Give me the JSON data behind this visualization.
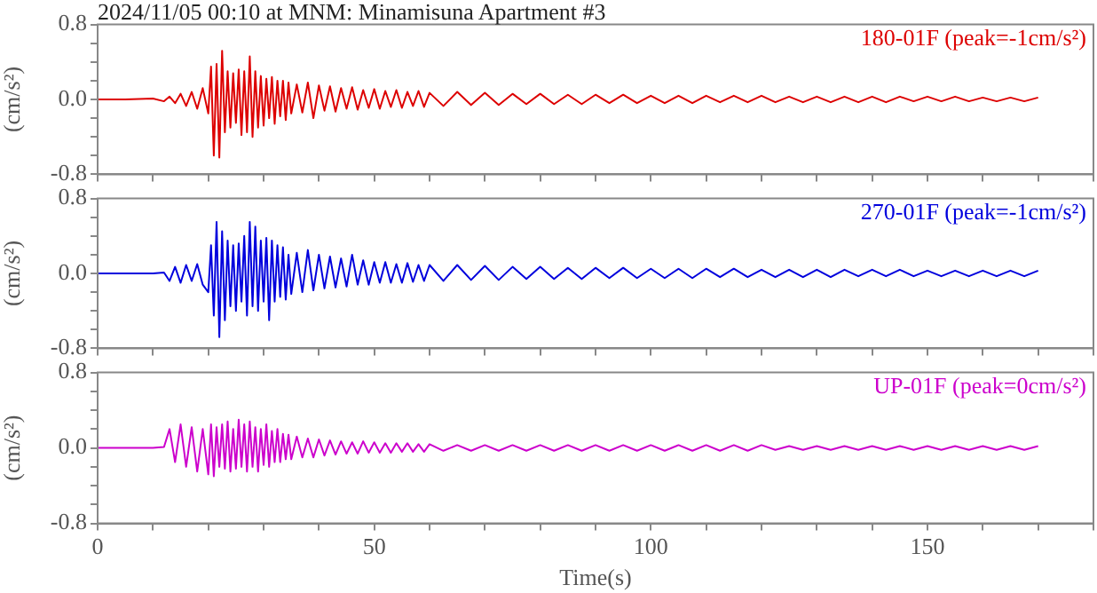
{
  "chart_data": [
    {
      "type": "line",
      "title": "2024/11/05 00:10 at MNM: Minamisuna Apartment #3",
      "ylabel": "(cm/s²)",
      "annotations": [
        "180-01F (peak=-1cm/s²)"
      ],
      "tick_labels": "y",
      "x": [
        0,
        5,
        10,
        12,
        13,
        14,
        15,
        16,
        17,
        18,
        19,
        20,
        20.5,
        21,
        21.5,
        22,
        22.5,
        23,
        23.5,
        24,
        24.5,
        25,
        25.5,
        26,
        26.5,
        27,
        27.5,
        28,
        28.5,
        29,
        29.5,
        30,
        30.5,
        31,
        31.5,
        32,
        32.5,
        33,
        33.5,
        34,
        34.5,
        35,
        36,
        37,
        38,
        39,
        40,
        41,
        42,
        43,
        44,
        45,
        46,
        47,
        48,
        49,
        50,
        51,
        52,
        53,
        54,
        55,
        56,
        57,
        58,
        59,
        60,
        62.5,
        65,
        67.5,
        70,
        72.5,
        75,
        77.5,
        80,
        82.5,
        85,
        87.5,
        90,
        92.5,
        95,
        97.5,
        100,
        102.5,
        105,
        107.5,
        110,
        112.5,
        115,
        117.5,
        120,
        122.5,
        125,
        127.5,
        130,
        132.5,
        135,
        137.5,
        140,
        142.5,
        145,
        147.5,
        150,
        152.5,
        155,
        157.5,
        160,
        162.5,
        165,
        167.5,
        170
      ],
      "series": [
        {
          "color": "#dd0000",
          "values": [
            0,
            0,
            0.01,
            -0.02,
            0.03,
            -0.04,
            0.06,
            -0.07,
            0.08,
            -0.1,
            0.12,
            -0.15,
            0.35,
            -0.6,
            0.38,
            -0.62,
            0.52,
            -0.35,
            0.3,
            -0.3,
            0.28,
            -0.25,
            0.32,
            -0.38,
            0.3,
            -0.35,
            0.46,
            -0.4,
            0.3,
            -0.3,
            0.25,
            -0.28,
            0.22,
            -0.2,
            0.24,
            -0.26,
            0.2,
            -0.18,
            0.2,
            -0.22,
            0.18,
            -0.15,
            0.16,
            -0.14,
            0.18,
            -0.2,
            0.15,
            -0.12,
            0.14,
            -0.13,
            0.12,
            -0.1,
            0.13,
            -0.11,
            0.1,
            -0.09,
            0.11,
            -0.1,
            0.09,
            -0.08,
            0.1,
            -0.09,
            0.08,
            -0.07,
            0.09,
            -0.08,
            0.07,
            -0.07,
            0.08,
            -0.06,
            0.07,
            -0.06,
            0.06,
            -0.05,
            0.06,
            -0.05,
            0.05,
            -0.05,
            0.05,
            -0.04,
            0.05,
            -0.04,
            0.04,
            -0.04,
            0.04,
            -0.04,
            0.04,
            -0.03,
            0.04,
            -0.03,
            0.04,
            -0.03,
            0.03,
            -0.03,
            0.03,
            -0.03,
            0.03,
            -0.03,
            0.03,
            -0.03,
            0.03,
            -0.02,
            0.03,
            -0.02,
            0.03,
            -0.02,
            0.02,
            -0.02,
            0.02,
            -0.02,
            0.02
          ]
        }
      ],
      "xlim": [
        0,
        180
      ],
      "xticks": [
        0,
        {
          "value": 10,
          "label": null
        },
        {
          "value": 20,
          "label": null
        },
        {
          "value": 30,
          "label": null
        },
        {
          "value": 40,
          "label": null
        },
        50,
        {
          "value": 60,
          "label": null
        },
        {
          "value": 70,
          "label": null
        },
        {
          "value": 80,
          "label": null
        },
        {
          "value": 90,
          "label": null
        },
        100,
        {
          "value": 110,
          "label": null
        },
        {
          "value": 120,
          "label": null
        },
        {
          "value": 130,
          "label": null
        },
        {
          "value": 140,
          "label": null
        },
        150,
        {
          "value": 160,
          "label": null
        },
        {
          "value": 170,
          "label": null
        },
        {
          "value": 180,
          "label": null
        }
      ],
      "ylim": [
        -0.8,
        0.8
      ],
      "yticks": [
        {
          "value": -0.8,
          "label": "-0.8"
        },
        {
          "value": -0.6,
          "label": null
        },
        {
          "value": -0.4,
          "label": null
        },
        {
          "value": -0.2,
          "label": null
        },
        {
          "value": 0,
          "label": "0.0"
        },
        {
          "value": 0.2,
          "label": null
        },
        {
          "value": 0.4,
          "label": null
        },
        {
          "value": 0.6,
          "label": null
        },
        {
          "value": 0.8,
          "label": "0.8"
        }
      ]
    },
    {
      "type": "line",
      "ylabel": "(cm/s²)",
      "annotations": [
        "270-01F (peak=-1cm/s²)"
      ],
      "tick_labels": "y",
      "x": [
        0,
        5,
        10,
        12,
        13,
        14,
        15,
        16,
        17,
        18,
        19,
        20,
        20.5,
        21,
        21.5,
        22,
        22.5,
        23,
        23.5,
        24,
        24.5,
        25,
        25.5,
        26,
        26.5,
        27,
        27.5,
        28,
        28.5,
        29,
        29.5,
        30,
        30.5,
        31,
        31.5,
        32,
        32.5,
        33,
        33.5,
        34,
        34.5,
        35,
        36,
        37,
        38,
        39,
        40,
        41,
        42,
        43,
        44,
        45,
        46,
        47,
        48,
        49,
        50,
        51,
        52,
        53,
        54,
        55,
        56,
        57,
        58,
        59,
        60,
        62.5,
        65,
        67.5,
        70,
        72.5,
        75,
        77.5,
        80,
        82.5,
        85,
        87.5,
        90,
        92.5,
        95,
        97.5,
        100,
        102.5,
        105,
        107.5,
        110,
        112.5,
        115,
        117.5,
        120,
        122.5,
        125,
        127.5,
        130,
        132.5,
        135,
        137.5,
        140,
        142.5,
        145,
        147.5,
        150,
        152.5,
        155,
        157.5,
        160,
        162.5,
        165,
        167.5,
        170
      ],
      "series": [
        {
          "color": "#0000dd",
          "values": [
            0,
            0,
            0,
            0.01,
            -0.08,
            0.07,
            -0.1,
            0.09,
            -0.08,
            0.1,
            -0.12,
            -0.2,
            0.3,
            -0.45,
            0.55,
            -0.68,
            0.45,
            -0.5,
            0.35,
            -0.35,
            0.3,
            -0.4,
            0.32,
            -0.3,
            0.4,
            -0.45,
            0.55,
            -0.35,
            0.5,
            -0.4,
            0.35,
            -0.3,
            0.38,
            -0.5,
            0.35,
            -0.3,
            0.3,
            -0.25,
            0.28,
            -0.28,
            0.2,
            -0.22,
            0.22,
            -0.2,
            0.25,
            -0.18,
            0.2,
            -0.16,
            0.18,
            -0.15,
            0.16,
            -0.14,
            0.2,
            -0.12,
            0.14,
            -0.12,
            0.12,
            -0.1,
            0.12,
            -0.1,
            0.1,
            -0.1,
            0.11,
            -0.09,
            0.09,
            -0.08,
            0.09,
            -0.08,
            0.09,
            -0.07,
            0.08,
            -0.07,
            0.07,
            -0.06,
            0.07,
            -0.06,
            0.06,
            -0.06,
            0.06,
            -0.05,
            0.06,
            -0.05,
            0.05,
            -0.05,
            0.05,
            -0.05,
            0.05,
            -0.04,
            0.05,
            -0.04,
            0.04,
            -0.04,
            0.04,
            -0.04,
            0.04,
            -0.04,
            0.04,
            -0.03,
            0.04,
            -0.03,
            0.04,
            -0.03,
            0.03,
            -0.03,
            0.03,
            -0.03,
            0.03,
            -0.03,
            0.03,
            -0.03,
            0.03
          ]
        }
      ],
      "xlim": [
        0,
        180
      ],
      "xticks": [
        0,
        {
          "value": 10,
          "label": null
        },
        {
          "value": 20,
          "label": null
        },
        {
          "value": 30,
          "label": null
        },
        {
          "value": 40,
          "label": null
        },
        50,
        {
          "value": 60,
          "label": null
        },
        {
          "value": 70,
          "label": null
        },
        {
          "value": 80,
          "label": null
        },
        {
          "value": 90,
          "label": null
        },
        100,
        {
          "value": 110,
          "label": null
        },
        {
          "value": 120,
          "label": null
        },
        {
          "value": 130,
          "label": null
        },
        {
          "value": 140,
          "label": null
        },
        150,
        {
          "value": 160,
          "label": null
        },
        {
          "value": 170,
          "label": null
        },
        {
          "value": 180,
          "label": null
        }
      ],
      "ylim": [
        -0.8,
        0.8
      ],
      "yticks": [
        {
          "value": -0.8,
          "label": "-0.8"
        },
        {
          "value": -0.6,
          "label": null
        },
        {
          "value": -0.4,
          "label": null
        },
        {
          "value": -0.2,
          "label": null
        },
        {
          "value": 0,
          "label": "0.0"
        },
        {
          "value": 0.2,
          "label": null
        },
        {
          "value": 0.4,
          "label": null
        },
        {
          "value": 0.6,
          "label": null
        },
        {
          "value": 0.8,
          "label": "0.8"
        }
      ]
    },
    {
      "type": "line",
      "ylabel": "(cm/s²)",
      "xlabel": "Time(s)",
      "annotations": [
        "UP-01F (peak=0cm/s²)"
      ],
      "x": [
        0,
        5,
        10,
        12,
        13,
        14,
        15,
        16,
        17,
        18,
        19,
        20,
        20.5,
        21,
        21.5,
        22,
        22.5,
        23,
        23.5,
        24,
        24.5,
        25,
        25.5,
        26,
        26.5,
        27,
        27.5,
        28,
        28.5,
        29,
        29.5,
        30,
        30.5,
        31,
        31.5,
        32,
        32.5,
        33,
        33.5,
        34,
        34.5,
        35,
        36,
        37,
        38,
        39,
        40,
        41,
        42,
        43,
        44,
        45,
        46,
        47,
        48,
        49,
        50,
        51,
        52,
        53,
        54,
        55,
        56,
        57,
        58,
        59,
        60,
        62.5,
        65,
        67.5,
        70,
        72.5,
        75,
        77.5,
        80,
        82.5,
        85,
        87.5,
        90,
        92.5,
        95,
        97.5,
        100,
        102.5,
        105,
        107.5,
        110,
        112.5,
        115,
        117.5,
        120,
        122.5,
        125,
        127.5,
        130,
        132.5,
        135,
        137.5,
        140,
        142.5,
        145,
        147.5,
        150,
        152.5,
        155,
        157.5,
        160,
        162.5,
        165,
        167.5,
        170
      ],
      "series": [
        {
          "color": "#cc00cc",
          "values": [
            0,
            0,
            0,
            0.01,
            0.2,
            -0.15,
            0.25,
            -0.2,
            0.22,
            -0.25,
            0.2,
            -0.28,
            0.25,
            -0.3,
            0.22,
            -0.2,
            0.25,
            -0.22,
            0.28,
            -0.25,
            0.2,
            -0.22,
            0.3,
            -0.2,
            0.25,
            -0.25,
            0.28,
            -0.2,
            0.22,
            -0.25,
            0.2,
            -0.18,
            0.25,
            -0.2,
            0.18,
            -0.15,
            0.2,
            -0.15,
            0.15,
            -0.12,
            0.14,
            -0.12,
            0.12,
            -0.1,
            0.1,
            -0.1,
            0.09,
            -0.08,
            0.08,
            -0.07,
            0.07,
            -0.06,
            0.06,
            -0.06,
            0.07,
            -0.05,
            0.06,
            -0.05,
            0.05,
            -0.05,
            0.05,
            -0.04,
            0.05,
            -0.04,
            0.04,
            -0.04,
            0.04,
            -0.03,
            0.03,
            -0.03,
            0.03,
            -0.03,
            0.03,
            -0.03,
            0.03,
            -0.03,
            0.03,
            -0.03,
            0.03,
            -0.03,
            0.03,
            -0.03,
            0.03,
            -0.03,
            0.03,
            -0.03,
            0.03,
            -0.03,
            0.03,
            -0.03,
            0.03,
            -0.02,
            0.02,
            -0.02,
            0.02,
            -0.02,
            0.02,
            -0.02,
            0.02,
            -0.02,
            0.02,
            -0.02,
            0.02,
            -0.02,
            0.02,
            -0.02,
            0.02,
            -0.02,
            0.02,
            -0.02,
            0.02
          ]
        }
      ],
      "xlim": [
        0,
        180
      ],
      "xticks": [
        0,
        {
          "value": 10,
          "label": null
        },
        {
          "value": 20,
          "label": null
        },
        {
          "value": 30,
          "label": null
        },
        {
          "value": 40,
          "label": null
        },
        50,
        {
          "value": 60,
          "label": null
        },
        {
          "value": 70,
          "label": null
        },
        {
          "value": 80,
          "label": null
        },
        {
          "value": 90,
          "label": null
        },
        100,
        {
          "value": 110,
          "label": null
        },
        {
          "value": 120,
          "label": null
        },
        {
          "value": 130,
          "label": null
        },
        {
          "value": 140,
          "label": null
        },
        150,
        {
          "value": 160,
          "label": null
        },
        {
          "value": 170,
          "label": null
        },
        {
          "value": 180,
          "label": null
        }
      ],
      "ylim": [
        -0.8,
        0.8
      ],
      "yticks": [
        {
          "value": -0.8,
          "label": "-0.8"
        },
        {
          "value": -0.6,
          "label": null
        },
        {
          "value": -0.4,
          "label": null
        },
        {
          "value": -0.2,
          "label": null
        },
        {
          "value": 0,
          "label": "0.0"
        },
        {
          "value": 0.2,
          "label": null
        },
        {
          "value": 0.4,
          "label": null
        },
        {
          "value": 0.6,
          "label": null
        },
        {
          "value": 0.8,
          "label": "0.8"
        }
      ]
    }
  ]
}
